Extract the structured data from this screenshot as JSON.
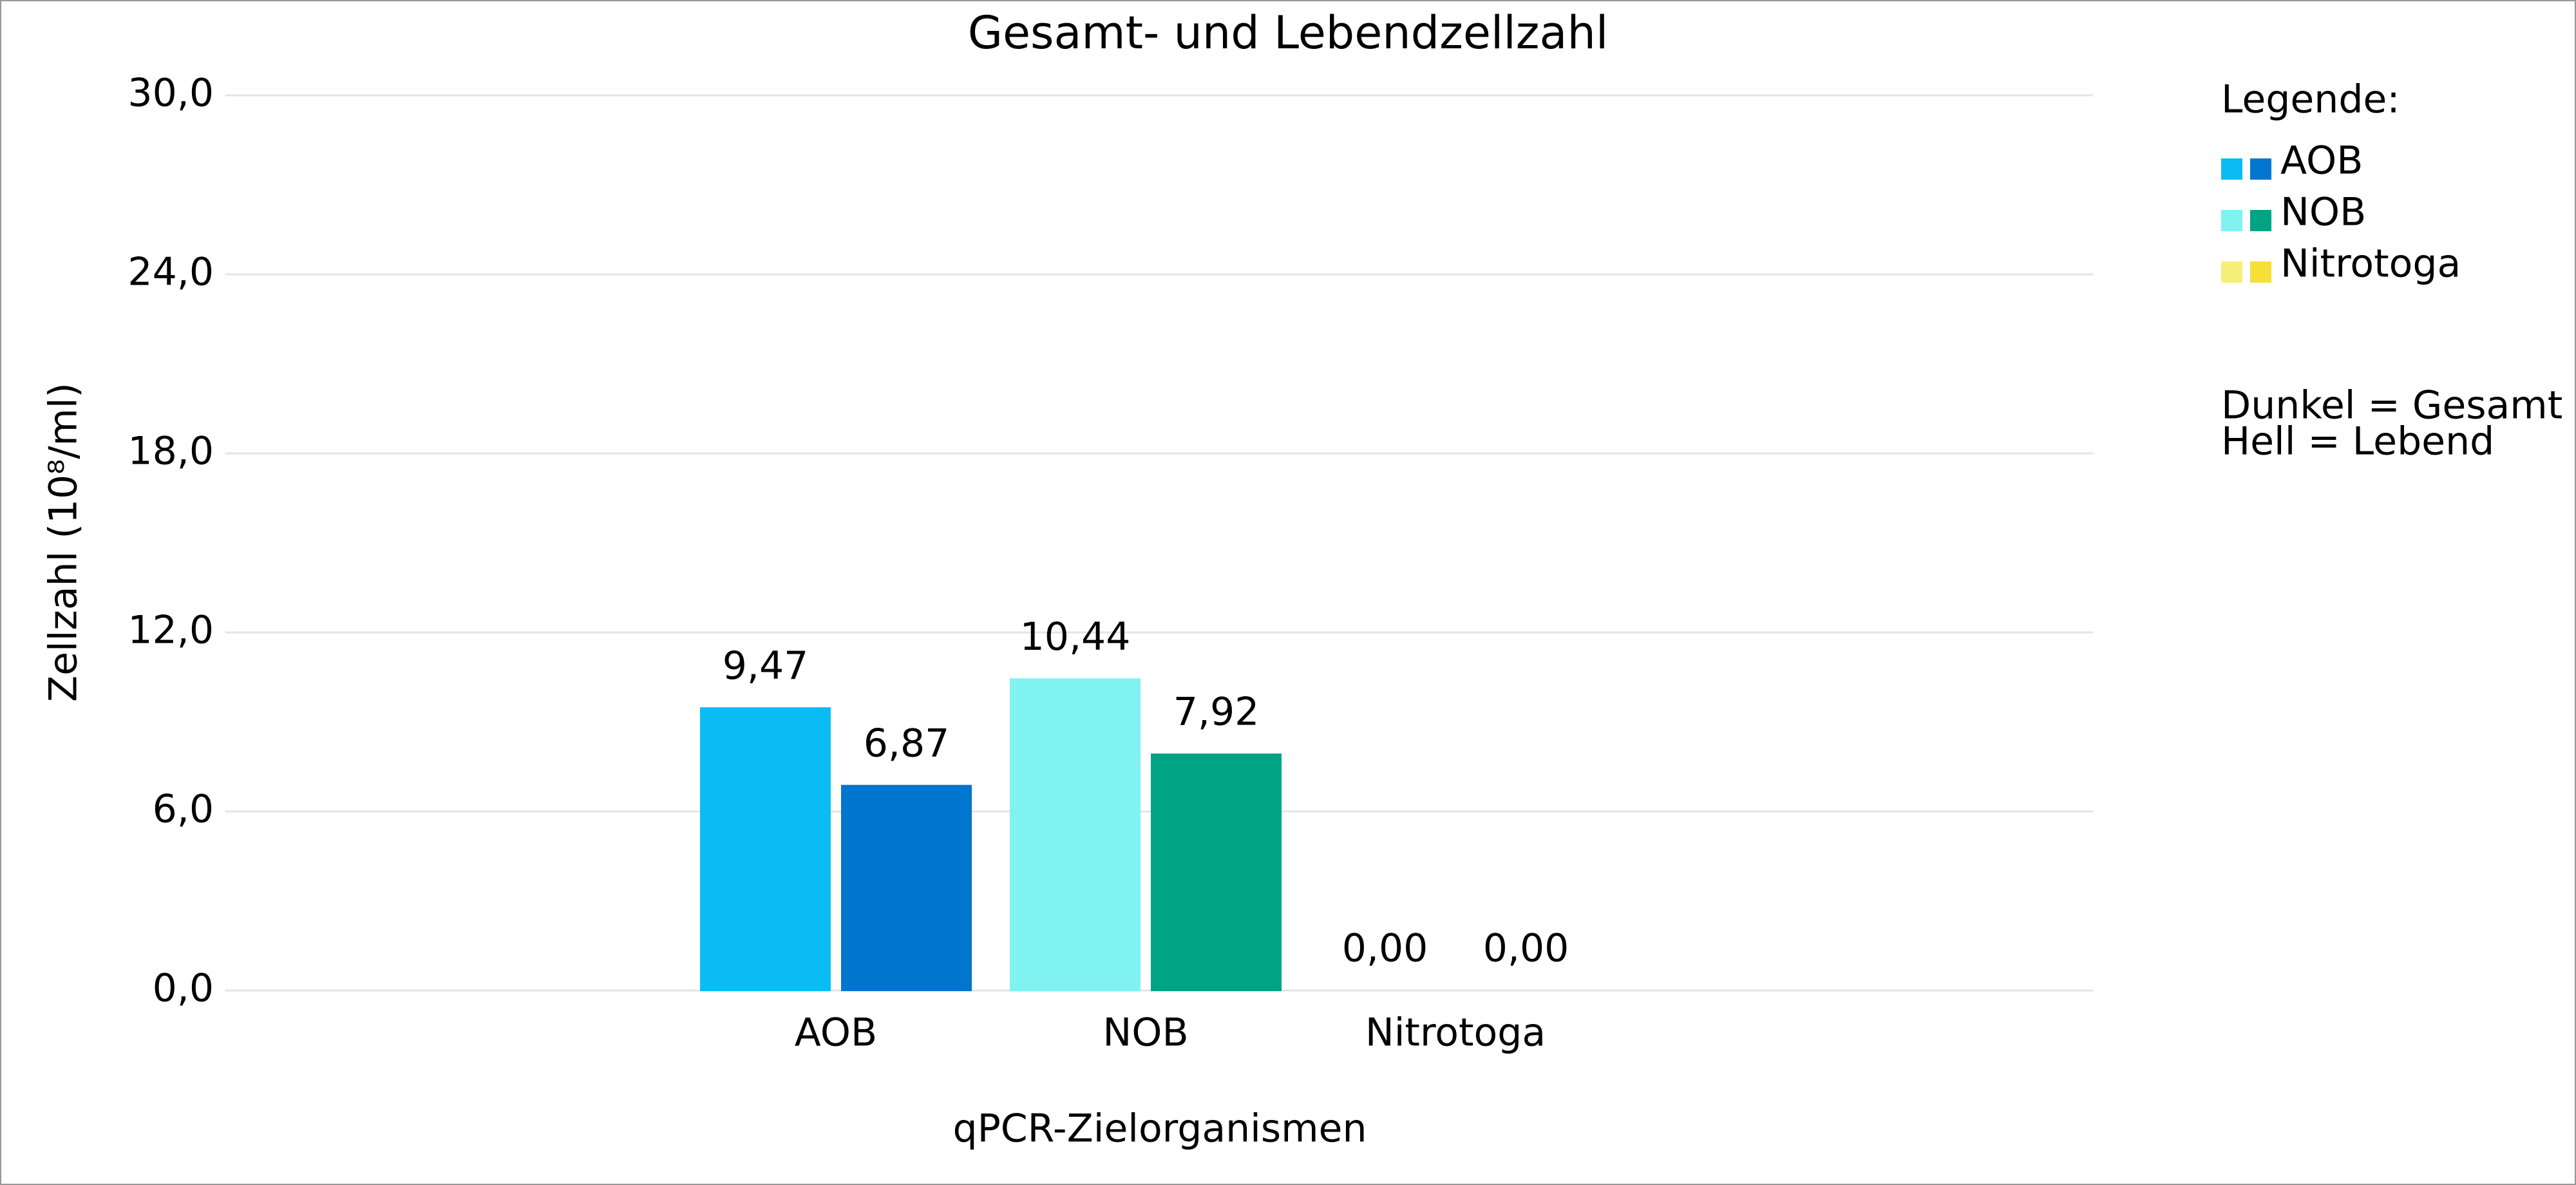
{
  "chart_data": {
    "type": "bar",
    "title": "Gesamt- und Lebendzellzahl",
    "xlabel": "qPCR-Zielorganismen",
    "ylabel": "Zellzahl (10⁸/ml)",
    "categories": [
      "AOB",
      "NOB",
      "Nitrotoga"
    ],
    "series": [
      {
        "colors": [
          "#0bbcf4",
          "#80f2f2",
          "#f5ef7a"
        ],
        "values": [
          9.47,
          10.44,
          0.0
        ],
        "value_labels": [
          "9,47",
          "10,44",
          "0,00"
        ]
      },
      {
        "colors": [
          "#0076cf",
          "#00a384",
          "#f7df3a"
        ],
        "values": [
          6.87,
          7.92,
          0.0
        ],
        "value_labels": [
          "6,87",
          "7,92",
          "0,00"
        ]
      }
    ],
    "ylim": [
      0,
      30
    ],
    "yticks": [
      {
        "value": 0,
        "label": "0,0"
      },
      {
        "value": 6,
        "label": "6,0"
      },
      {
        "value": 12,
        "label": "12,0"
      },
      {
        "value": 18,
        "label": "18,0"
      },
      {
        "value": 24,
        "label": "24,0"
      },
      {
        "value": 30,
        "label": "30,0"
      }
    ],
    "grid": true,
    "legend": {
      "title": "Legende:",
      "notes": [
        "Dunkel = Gesamt",
        "Hell = Lebend"
      ]
    }
  }
}
